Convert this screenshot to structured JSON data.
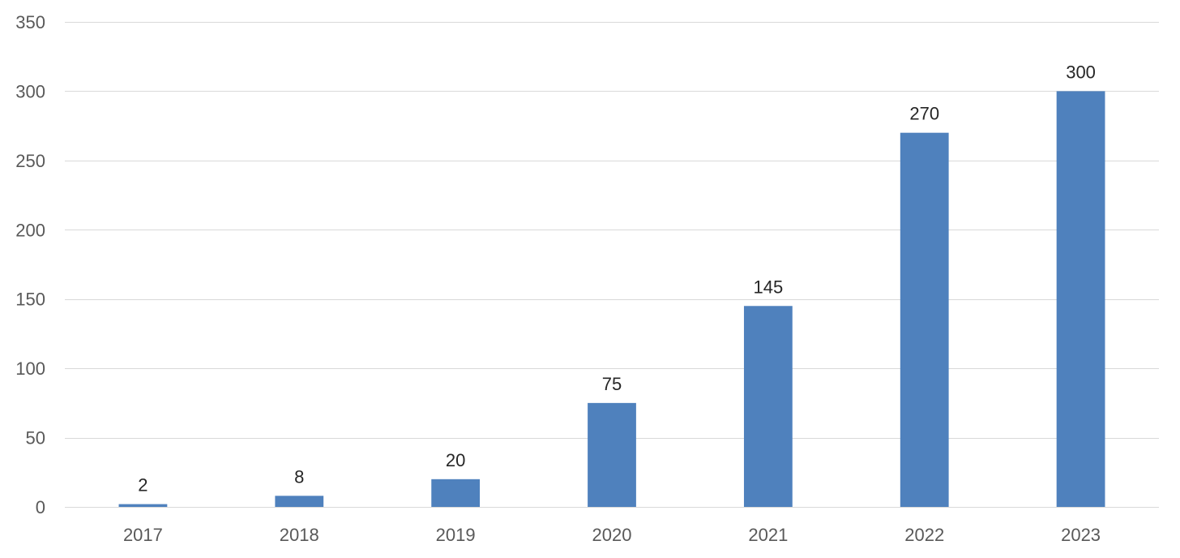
{
  "chart_data": {
    "type": "bar",
    "categories": [
      "2017",
      "2018",
      "2019",
      "2020",
      "2021",
      "2022",
      "2023"
    ],
    "values": [
      2,
      8,
      20,
      75,
      145,
      270,
      300
    ],
    "data_labels": [
      "2",
      "8",
      "20",
      "75",
      "145",
      "270",
      "300"
    ],
    "title": "",
    "xlabel": "",
    "ylabel": "",
    "ylim": [
      0,
      350
    ],
    "yticks": [
      0,
      50,
      100,
      150,
      200,
      250,
      300,
      350
    ],
    "ytick_labels": [
      "0",
      "50",
      "100",
      "150",
      "200",
      "250",
      "300",
      "350"
    ],
    "grid": true,
    "legend": "none",
    "bar_color": "#4f81bd",
    "grid_color": "#d9d9d9"
  }
}
